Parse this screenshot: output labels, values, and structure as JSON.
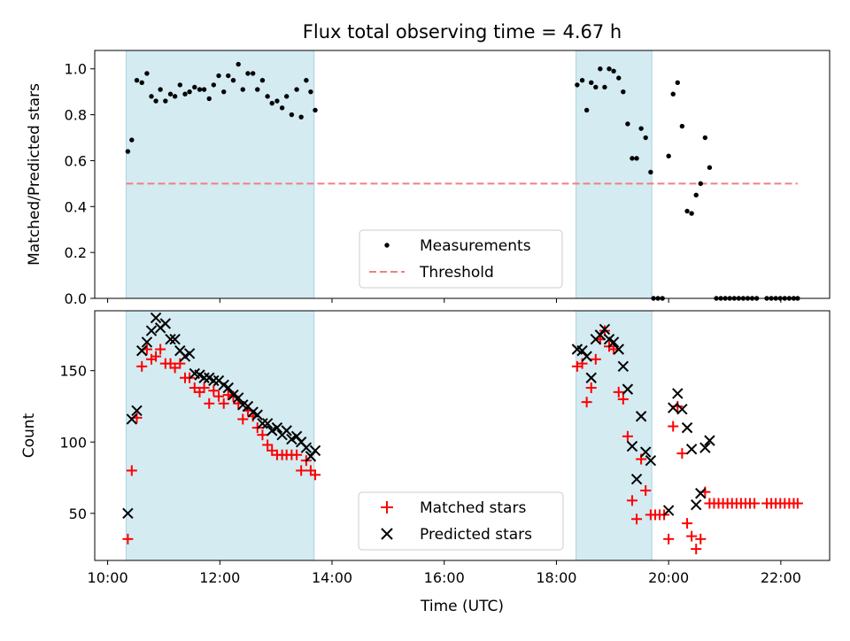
{
  "colors": {
    "band": "#d4ebf2",
    "band_edge": "#a9d3df",
    "threshold": "#f08080",
    "measurement": "#000000",
    "matched": "#ff0000",
    "predicted": "#000000"
  },
  "chart_data": [
    {
      "type": "scatter",
      "title": "Flux total observing time = 4.67 h",
      "xlabel": "",
      "ylabel": "Matched/Predicted stars",
      "xlim": [
        9.77,
        22.87
      ],
      "ylim": [
        0.0,
        1.08
      ],
      "xticks": [
        10,
        12,
        14,
        16,
        18,
        20,
        22
      ],
      "yticks": [
        0.0,
        0.2,
        0.4,
        0.6,
        0.8,
        1.0
      ],
      "ytick_labels": [
        "0.0",
        "0.2",
        "0.4",
        "0.6",
        "0.8",
        "1.0"
      ],
      "legend_position": "lower-center",
      "shaded_intervals": [
        [
          10.33,
          13.68
        ],
        [
          18.35,
          19.7
        ]
      ],
      "threshold": {
        "name": "Threshold",
        "y": 0.5,
        "x": [
          10.33,
          22.3
        ]
      },
      "series": [
        {
          "name": "Measurements",
          "points": [
            [
              10.36,
              0.64
            ],
            [
              10.43,
              0.69
            ],
            [
              10.52,
              0.95
            ],
            [
              10.61,
              0.94
            ],
            [
              10.7,
              0.98
            ],
            [
              10.78,
              0.88
            ],
            [
              10.86,
              0.86
            ],
            [
              10.94,
              0.91
            ],
            [
              11.03,
              0.86
            ],
            [
              11.12,
              0.89
            ],
            [
              11.2,
              0.88
            ],
            [
              11.29,
              0.93
            ],
            [
              11.38,
              0.89
            ],
            [
              11.46,
              0.9
            ],
            [
              11.55,
              0.92
            ],
            [
              11.64,
              0.91
            ],
            [
              11.72,
              0.91
            ],
            [
              11.81,
              0.87
            ],
            [
              11.89,
              0.93
            ],
            [
              11.98,
              0.97
            ],
            [
              12.07,
              0.9
            ],
            [
              12.15,
              0.97
            ],
            [
              12.24,
              0.95
            ],
            [
              12.33,
              1.02
            ],
            [
              12.41,
              0.91
            ],
            [
              12.5,
              0.98
            ],
            [
              12.59,
              0.98
            ],
            [
              12.67,
              0.91
            ],
            [
              12.76,
              0.95
            ],
            [
              12.85,
              0.88
            ],
            [
              12.93,
              0.85
            ],
            [
              13.02,
              0.86
            ],
            [
              13.11,
              0.83
            ],
            [
              13.19,
              0.88
            ],
            [
              13.28,
              0.8
            ],
            [
              13.37,
              0.91
            ],
            [
              13.45,
              0.79
            ],
            [
              13.54,
              0.95
            ],
            [
              13.62,
              0.9
            ],
            [
              13.7,
              0.82
            ],
            [
              18.37,
              0.93
            ],
            [
              18.46,
              0.95
            ],
            [
              18.54,
              0.82
            ],
            [
              18.62,
              0.94
            ],
            [
              18.7,
              0.92
            ],
            [
              18.78,
              1.0
            ],
            [
              18.86,
              0.92
            ],
            [
              18.94,
              1.0
            ],
            [
              19.02,
              0.99
            ],
            [
              19.11,
              0.96
            ],
            [
              19.19,
              0.9
            ],
            [
              19.27,
              0.76
            ],
            [
              19.35,
              0.61
            ],
            [
              19.43,
              0.61
            ],
            [
              19.51,
              0.74
            ],
            [
              19.59,
              0.7
            ],
            [
              19.68,
              0.55
            ],
            [
              19.73,
              0.0
            ],
            [
              19.81,
              0.0
            ],
            [
              19.89,
              0.0
            ],
            [
              20.0,
              0.62
            ],
            [
              20.08,
              0.89
            ],
            [
              20.16,
              0.94
            ],
            [
              20.24,
              0.75
            ],
            [
              20.33,
              0.38
            ],
            [
              20.41,
              0.37
            ],
            [
              20.49,
              0.45
            ],
            [
              20.57,
              0.5
            ],
            [
              20.65,
              0.7
            ],
            [
              20.73,
              0.57
            ],
            [
              20.85,
              0.0
            ],
            [
              20.93,
              0.0
            ],
            [
              21.01,
              0.0
            ],
            [
              21.09,
              0.0
            ],
            [
              21.17,
              0.0
            ],
            [
              21.25,
              0.0
            ],
            [
              21.33,
              0.0
            ],
            [
              21.41,
              0.0
            ],
            [
              21.49,
              0.0
            ],
            [
              21.57,
              0.0
            ],
            [
              21.75,
              0.0
            ],
            [
              21.83,
              0.0
            ],
            [
              21.91,
              0.0
            ],
            [
              21.99,
              0.0
            ],
            [
              22.07,
              0.0
            ],
            [
              22.15,
              0.0
            ],
            [
              22.23,
              0.0
            ],
            [
              22.3,
              0.0
            ]
          ]
        }
      ]
    },
    {
      "type": "scatter",
      "title": "",
      "xlabel": "Time (UTC)",
      "ylabel": "Count",
      "xlim": [
        9.77,
        22.87
      ],
      "ylim": [
        17,
        192
      ],
      "xticks": [
        10,
        12,
        14,
        16,
        18,
        20,
        22
      ],
      "xtick_labels": [
        "10:00",
        "12:00",
        "14:00",
        "16:00",
        "18:00",
        "20:00",
        "22:00"
      ],
      "yticks": [
        50,
        100,
        150
      ],
      "ytick_labels": [
        "50",
        "100",
        "150"
      ],
      "legend_position": "lower-center",
      "shaded_intervals": [
        [
          10.33,
          13.68
        ],
        [
          18.35,
          19.7
        ]
      ],
      "series": [
        {
          "name": "Matched stars",
          "marker": "plus",
          "points": [
            [
              10.36,
              32
            ],
            [
              10.43,
              80
            ],
            [
              10.52,
              117
            ],
            [
              10.61,
              153
            ],
            [
              10.7,
              165
            ],
            [
              10.78,
              158
            ],
            [
              10.86,
              160
            ],
            [
              10.94,
              165
            ],
            [
              11.03,
              155
            ],
            [
              11.12,
              155
            ],
            [
              11.2,
              152
            ],
            [
              11.29,
              155
            ],
            [
              11.38,
              145
            ],
            [
              11.46,
              145
            ],
            [
              11.55,
              138
            ],
            [
              11.64,
              135
            ],
            [
              11.72,
              138
            ],
            [
              11.81,
              127
            ],
            [
              11.89,
              136
            ],
            [
              11.98,
              132
            ],
            [
              12.07,
              127
            ],
            [
              12.15,
              133
            ],
            [
              12.24,
              132
            ],
            [
              12.33,
              127
            ],
            [
              12.41,
              116
            ],
            [
              12.5,
              122
            ],
            [
              12.59,
              118
            ],
            [
              12.67,
              110
            ],
            [
              12.76,
              105
            ],
            [
              12.85,
              98
            ],
            [
              12.93,
              94
            ],
            [
              13.02,
              91
            ],
            [
              13.11,
              91
            ],
            [
              13.19,
              91
            ],
            [
              13.28,
              91
            ],
            [
              13.37,
              91
            ],
            [
              13.45,
              80
            ],
            [
              13.54,
              87
            ],
            [
              13.62,
              80
            ],
            [
              13.7,
              77
            ],
            [
              18.37,
              153
            ],
            [
              18.46,
              155
            ],
            [
              18.54,
              128
            ],
            [
              18.62,
              138
            ],
            [
              18.7,
              158
            ],
            [
              18.78,
              172
            ],
            [
              18.86,
              178
            ],
            [
              18.94,
              167
            ],
            [
              19.02,
              165
            ],
            [
              19.11,
              135
            ],
            [
              19.19,
              130
            ],
            [
              19.27,
              104
            ],
            [
              19.35,
              59
            ],
            [
              19.43,
              46
            ],
            [
              19.51,
              88
            ],
            [
              19.59,
              66
            ],
            [
              19.68,
              49
            ],
            [
              19.76,
              49
            ],
            [
              19.84,
              49
            ],
            [
              19.92,
              49
            ],
            [
              20.0,
              32
            ],
            [
              20.08,
              111
            ],
            [
              20.16,
              125
            ],
            [
              20.24,
              92
            ],
            [
              20.33,
              43
            ],
            [
              20.41,
              34
            ],
            [
              20.49,
              25
            ],
            [
              20.57,
              32
            ],
            [
              20.65,
              65
            ],
            [
              20.73,
              57
            ],
            [
              20.81,
              57
            ],
            [
              20.89,
              57
            ],
            [
              20.97,
              57
            ],
            [
              21.05,
              57
            ],
            [
              21.13,
              57
            ],
            [
              21.21,
              57
            ],
            [
              21.29,
              57
            ],
            [
              21.37,
              57
            ],
            [
              21.45,
              57
            ],
            [
              21.53,
              57
            ],
            [
              21.75,
              57
            ],
            [
              21.83,
              57
            ],
            [
              21.91,
              57
            ],
            [
              21.99,
              57
            ],
            [
              22.07,
              57
            ],
            [
              22.15,
              57
            ],
            [
              22.23,
              57
            ],
            [
              22.3,
              57
            ]
          ]
        },
        {
          "name": "Predicted stars",
          "marker": "x",
          "points": [
            [
              10.36,
              50
            ],
            [
              10.43,
              116
            ],
            [
              10.52,
              122
            ],
            [
              10.61,
              164
            ],
            [
              10.7,
              170
            ],
            [
              10.78,
              178
            ],
            [
              10.86,
              187
            ],
            [
              10.94,
              180
            ],
            [
              11.03,
              183
            ],
            [
              11.12,
              172
            ],
            [
              11.2,
              172
            ],
            [
              11.29,
              164
            ],
            [
              11.38,
              160
            ],
            [
              11.46,
              162
            ],
            [
              11.55,
              148
            ],
            [
              11.64,
              147
            ],
            [
              11.72,
              145
            ],
            [
              11.81,
              145
            ],
            [
              11.89,
              143
            ],
            [
              11.98,
              143
            ],
            [
              12.07,
              140
            ],
            [
              12.15,
              138
            ],
            [
              12.24,
              133
            ],
            [
              12.33,
              131
            ],
            [
              12.41,
              126
            ],
            [
              12.5,
              125
            ],
            [
              12.59,
              121
            ],
            [
              12.67,
              119
            ],
            [
              12.76,
              113
            ],
            [
              12.85,
              113
            ],
            [
              12.93,
              108
            ],
            [
              13.02,
              110
            ],
            [
              13.11,
              105
            ],
            [
              13.19,
              108
            ],
            [
              13.28,
              102
            ],
            [
              13.37,
              104
            ],
            [
              13.45,
              100
            ],
            [
              13.54,
              96
            ],
            [
              13.62,
              90
            ],
            [
              13.7,
              94
            ],
            [
              18.37,
              165
            ],
            [
              18.46,
              164
            ],
            [
              18.54,
              160
            ],
            [
              18.62,
              145
            ],
            [
              18.7,
              172
            ],
            [
              18.78,
              175
            ],
            [
              18.86,
              179
            ],
            [
              18.94,
              172
            ],
            [
              19.02,
              170
            ],
            [
              19.11,
              165
            ],
            [
              19.19,
              153
            ],
            [
              19.27,
              137
            ],
            [
              19.35,
              97
            ],
            [
              19.43,
              74
            ],
            [
              19.51,
              118
            ],
            [
              19.59,
              93
            ],
            [
              19.68,
              87
            ],
            [
              20.0,
              52
            ],
            [
              20.08,
              124
            ],
            [
              20.16,
              134
            ],
            [
              20.24,
              123
            ],
            [
              20.33,
              110
            ],
            [
              20.41,
              95
            ],
            [
              20.49,
              56
            ],
            [
              20.57,
              64
            ],
            [
              20.65,
              96
            ],
            [
              20.73,
              101
            ]
          ]
        }
      ]
    }
  ]
}
